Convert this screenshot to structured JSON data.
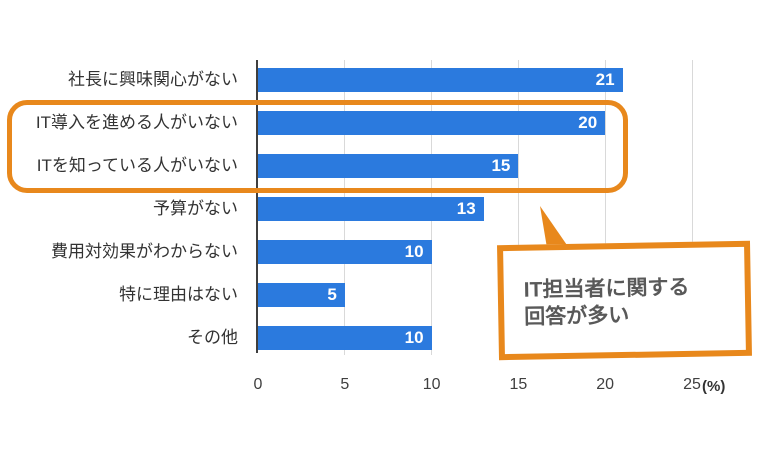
{
  "chart_data": {
    "type": "bar",
    "orientation": "horizontal",
    "categories": [
      "社長に興味関心がない",
      "IT導入を進める人がいない",
      "ITを知っている人がいない",
      "予算がない",
      "費用対効果がわからない",
      "特に理由はない",
      "その他"
    ],
    "values": [
      21,
      20,
      15,
      13,
      10,
      5,
      10
    ],
    "value_labels": [
      "21",
      "20",
      "15",
      "13",
      "10",
      "5",
      "10"
    ],
    "xlim": [
      0,
      25
    ],
    "x_ticks": [
      "0",
      "5",
      "10",
      "15",
      "20",
      "25"
    ],
    "unit_label": "(%)",
    "grid": true,
    "legend": "none",
    "title": "",
    "bar_color": "#2B7ADE",
    "axis_color": "#3f3f3f",
    "grid_color": "#d9d9d9"
  },
  "annotations": {
    "highlight": {
      "highlighted_row_indices": [
        1,
        2
      ],
      "color": "#E8881C"
    },
    "callout": {
      "line1": "IT担当者に関する",
      "line2": "回答が多い",
      "border_color": "#E8881C",
      "text_color": "#595959"
    }
  }
}
